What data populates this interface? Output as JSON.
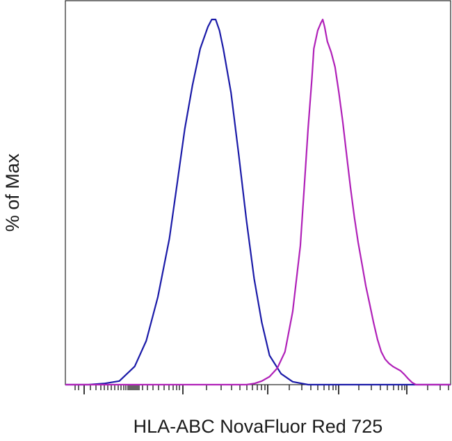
{
  "chart_data": {
    "type": "line",
    "title": "",
    "xlabel": "HLA-ABC NovaFluor Red 725",
    "ylabel": "% of Max",
    "x_scale": "biexponential",
    "x_tick_labels": [],
    "y_tick_labels": [],
    "grid": false,
    "legend": "none",
    "series": [
      {
        "color": "#1a1aa8",
        "points": [
          [
            0.0,
            0.0
          ],
          [
            0.06,
            0.0
          ],
          [
            0.1,
            0.3
          ],
          [
            0.14,
            1.0
          ],
          [
            0.18,
            5.0
          ],
          [
            0.21,
            12.0
          ],
          [
            0.24,
            24.0
          ],
          [
            0.27,
            40.0
          ],
          [
            0.29,
            55.0
          ],
          [
            0.31,
            70.0
          ],
          [
            0.33,
            82.0
          ],
          [
            0.35,
            92.0
          ],
          [
            0.37,
            98.0
          ],
          [
            0.38,
            100.0
          ],
          [
            0.39,
            100.0
          ],
          [
            0.4,
            97.0
          ],
          [
            0.41,
            92.0
          ],
          [
            0.43,
            80.0
          ],
          [
            0.45,
            63.0
          ],
          [
            0.47,
            45.0
          ],
          [
            0.49,
            29.0
          ],
          [
            0.51,
            17.0
          ],
          [
            0.53,
            8.0
          ],
          [
            0.56,
            3.0
          ],
          [
            0.59,
            0.8
          ],
          [
            0.63,
            0.0
          ],
          [
            1.0,
            0.0
          ]
        ]
      },
      {
        "color": "#b020b8",
        "points": [
          [
            0.0,
            0.0
          ],
          [
            0.47,
            0.0
          ],
          [
            0.49,
            0.3
          ],
          [
            0.51,
            1.0
          ],
          [
            0.53,
            2.2
          ],
          [
            0.55,
            4.5
          ],
          [
            0.57,
            9.0
          ],
          [
            0.59,
            20.0
          ],
          [
            0.61,
            38.0
          ],
          [
            0.62,
            54.0
          ],
          [
            0.63,
            70.0
          ],
          [
            0.64,
            84.0
          ],
          [
            0.645,
            92.0
          ],
          [
            0.655,
            97.0
          ],
          [
            0.663,
            99.0
          ],
          [
            0.668,
            100.0
          ],
          [
            0.673,
            98.0
          ],
          [
            0.68,
            94.0
          ],
          [
            0.69,
            91.0
          ],
          [
            0.7,
            87.0
          ],
          [
            0.71,
            80.0
          ],
          [
            0.72,
            72.0
          ],
          [
            0.73,
            63.0
          ],
          [
            0.74,
            54.0
          ],
          [
            0.75,
            46.0
          ],
          [
            0.76,
            39.0
          ],
          [
            0.77,
            33.0
          ],
          [
            0.78,
            27.0
          ],
          [
            0.79,
            22.0
          ],
          [
            0.8,
            17.0
          ],
          [
            0.81,
            12.5
          ],
          [
            0.82,
            9.0
          ],
          [
            0.83,
            7.0
          ],
          [
            0.84,
            5.8
          ],
          [
            0.85,
            5.0
          ],
          [
            0.86,
            4.4
          ],
          [
            0.87,
            3.8
          ],
          [
            0.88,
            2.8
          ],
          [
            0.89,
            1.6
          ],
          [
            0.9,
            0.6
          ],
          [
            0.91,
            0.0
          ],
          [
            1.0,
            0.0
          ]
        ]
      }
    ]
  }
}
